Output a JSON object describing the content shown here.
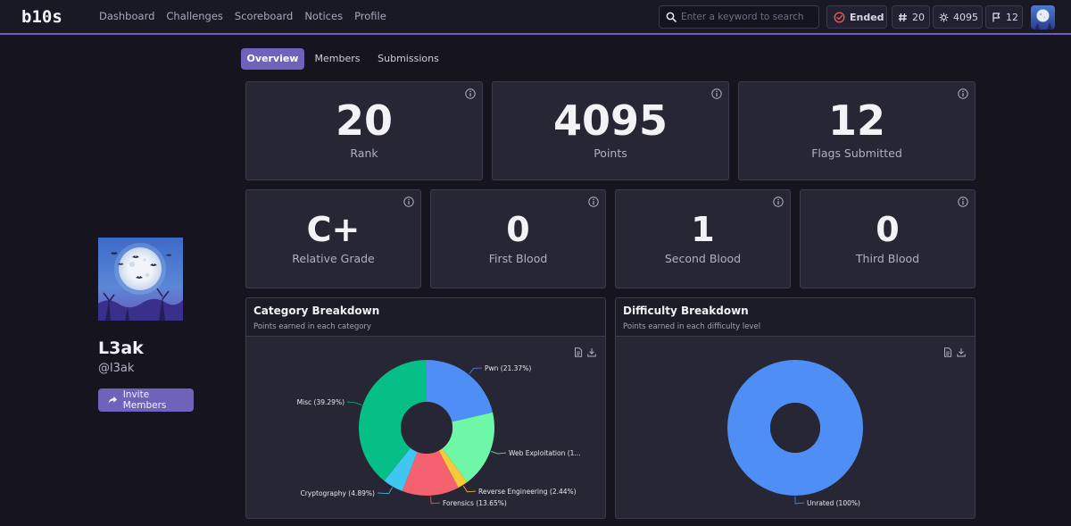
{
  "navbar": {
    "logo_text": "b10s",
    "links": [
      "Dashboard",
      "Challenges",
      "Scoreboard",
      "Notices",
      "Profile"
    ],
    "search_placeholder": "Enter a keyword to search",
    "status_label": "Ended",
    "rank": "20",
    "points": "4095",
    "flags": "12",
    "colors": {
      "accent": "#6e62bb",
      "status_red": "#e25a5a"
    }
  },
  "tabs": [
    {
      "label": "Overview",
      "active": true
    },
    {
      "label": "Members",
      "active": false
    },
    {
      "label": "Submissions",
      "active": false
    }
  ],
  "profile": {
    "name": "L3ak",
    "handle": "@l3ak",
    "invite_label": "Invite Members"
  },
  "stats_top": [
    {
      "value": "20",
      "label": "Rank"
    },
    {
      "value": "4095",
      "label": "Points"
    },
    {
      "value": "12",
      "label": "Flags Submitted"
    }
  ],
  "stats_bottom": [
    {
      "value": "C+",
      "label": "Relative Grade"
    },
    {
      "value": "0",
      "label": "First Blood"
    },
    {
      "value": "1",
      "label": "Second Blood"
    },
    {
      "value": "0",
      "label": "Third Blood"
    }
  ],
  "category_panel": {
    "title": "Category Breakdown",
    "subtitle": "Points earned in each category",
    "icons": [
      "document-icon",
      "download-icon"
    ]
  },
  "difficulty_panel": {
    "title": "Difficulty Breakdown",
    "subtitle": "Points earned in each difficulty level",
    "icons": [
      "document-icon",
      "download-icon"
    ]
  },
  "chart_data": [
    {
      "type": "pie",
      "title": "Category Breakdown",
      "subtitle": "Points earned in each category",
      "donut": true,
      "slices": [
        {
          "name": "Pwn",
          "value": 21.37,
          "label": "Pwn (21.37%)",
          "color": "#4e8ef5"
        },
        {
          "name": "Web Exploitation",
          "value": 18.46,
          "label": "Web Exploitation (1...",
          "color": "#6ef7a6"
        },
        {
          "name": "Reverse Engineering",
          "value": 2.44,
          "label": "Reverse Engineering (2.44%)",
          "color": "#f5c93a"
        },
        {
          "name": "Forensics",
          "value": 13.65,
          "label": "Forensics (13.65%)",
          "color": "#f46270"
        },
        {
          "name": "Cryptography",
          "value": 4.89,
          "label": "Cryptography (4.89%)",
          "color": "#3fc7f2"
        },
        {
          "name": "Misc",
          "value": 39.29,
          "label": "Misc (39.29%)",
          "color": "#06bf86"
        }
      ]
    },
    {
      "type": "pie",
      "title": "Difficulty Breakdown",
      "subtitle": "Points earned in each difficulty level",
      "donut": true,
      "slices": [
        {
          "name": "Unrated",
          "value": 100,
          "label": "Unrated (100%)",
          "color": "#4e8ef5"
        }
      ]
    }
  ]
}
